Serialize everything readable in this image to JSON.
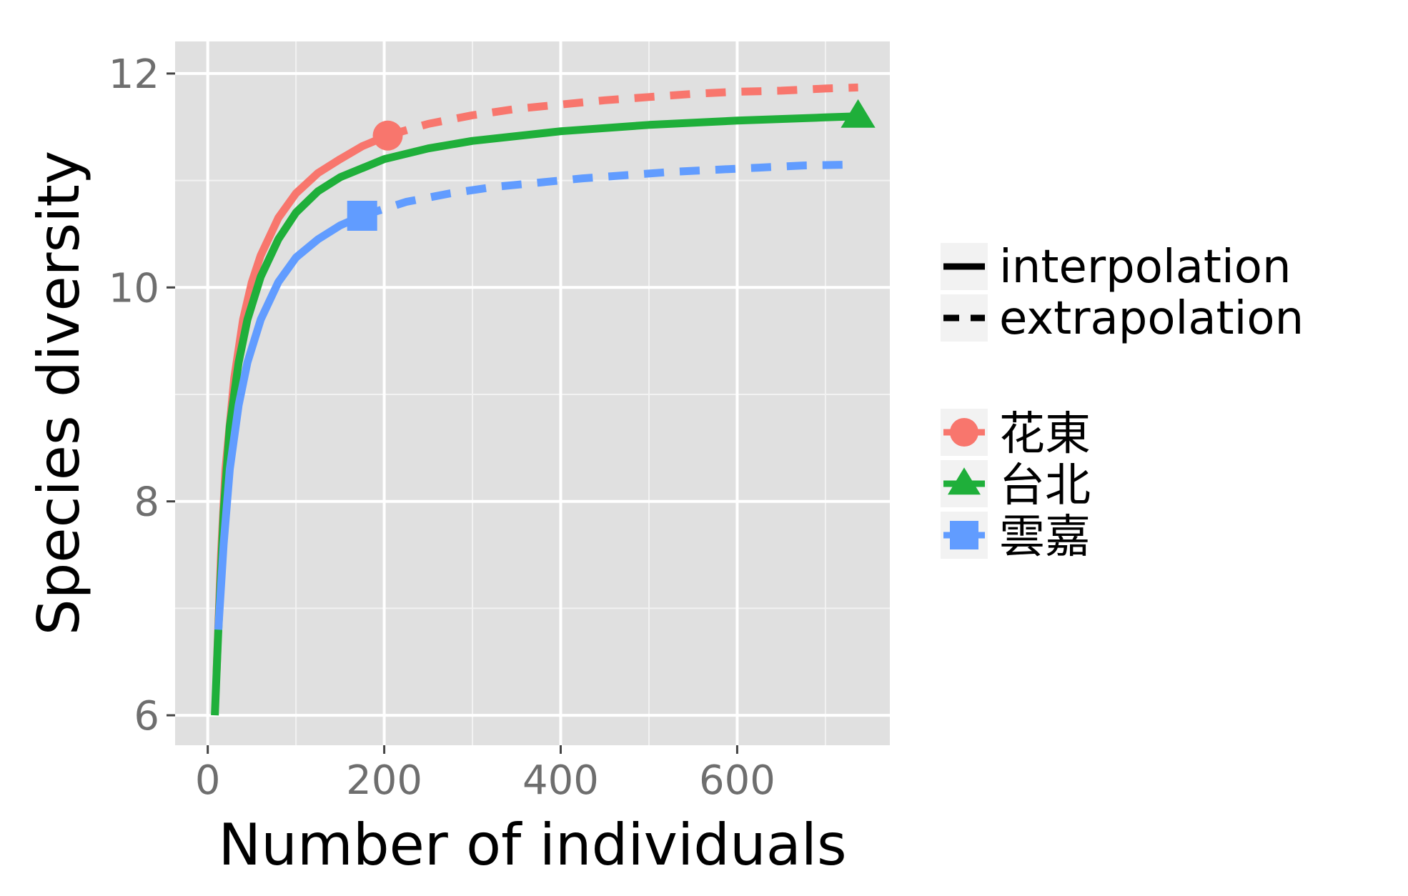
{
  "chart_data": {
    "type": "line",
    "title": "",
    "xlabel": "Number of individuals",
    "ylabel": "Species diversity",
    "xlim": [
      -37,
      773
    ],
    "ylim": [
      5.72,
      12.3
    ],
    "x_ticks": [
      0,
      200,
      400,
      600
    ],
    "x_minor_ticks": [
      100,
      300,
      500,
      700
    ],
    "y_ticks": [
      6,
      8,
      10,
      12
    ],
    "y_minor_ticks": [
      7,
      9,
      11
    ],
    "grid": true,
    "legend_position": "right",
    "linetype_legend": [
      {
        "label": "interpolation",
        "dash": "solid"
      },
      {
        "label": "extrapolation",
        "dash": "dashed"
      }
    ],
    "series": [
      {
        "name": "花東",
        "color": "#F8766D",
        "marker": "circle",
        "reference_point": {
          "x": 204,
          "y": 11.42
        },
        "interpolation": [
          [
            10,
            6.4
          ],
          [
            15,
            7.5
          ],
          [
            20,
            8.3
          ],
          [
            30,
            9.15
          ],
          [
            40,
            9.7
          ],
          [
            50,
            10.05
          ],
          [
            60,
            10.3
          ],
          [
            80,
            10.65
          ],
          [
            100,
            10.88
          ],
          [
            125,
            11.07
          ],
          [
            150,
            11.2
          ],
          [
            175,
            11.32
          ],
          [
            204,
            11.42
          ]
        ],
        "extrapolation": [
          [
            204,
            11.42
          ],
          [
            250,
            11.53
          ],
          [
            300,
            11.61
          ],
          [
            350,
            11.67
          ],
          [
            400,
            11.71
          ],
          [
            450,
            11.75
          ],
          [
            500,
            11.78
          ],
          [
            550,
            11.81
          ],
          [
            600,
            11.83
          ],
          [
            650,
            11.84
          ],
          [
            700,
            11.86
          ],
          [
            737,
            11.87
          ]
        ]
      },
      {
        "name": "台北",
        "color": "#1FAF3A",
        "marker": "triangle",
        "reference_point": {
          "x": 737,
          "y": 11.6
        },
        "interpolation": [
          [
            8,
            6.0
          ],
          [
            12,
            6.8
          ],
          [
            18,
            7.9
          ],
          [
            25,
            8.7
          ],
          [
            35,
            9.3
          ],
          [
            45,
            9.7
          ],
          [
            60,
            10.1
          ],
          [
            80,
            10.45
          ],
          [
            100,
            10.7
          ],
          [
            125,
            10.9
          ],
          [
            150,
            11.03
          ],
          [
            200,
            11.2
          ],
          [
            250,
            11.3
          ],
          [
            300,
            11.37
          ],
          [
            400,
            11.46
          ],
          [
            500,
            11.52
          ],
          [
            600,
            11.56
          ],
          [
            700,
            11.59
          ],
          [
            737,
            11.6
          ]
        ],
        "extrapolation": []
      },
      {
        "name": "雲嘉",
        "color": "#619CFF",
        "marker": "square",
        "reference_point": {
          "x": 175,
          "y": 10.67
        },
        "interpolation": [
          [
            12,
            6.8
          ],
          [
            18,
            7.6
          ],
          [
            25,
            8.3
          ],
          [
            35,
            8.9
          ],
          [
            45,
            9.3
          ],
          [
            60,
            9.7
          ],
          [
            80,
            10.05
          ],
          [
            100,
            10.28
          ],
          [
            125,
            10.45
          ],
          [
            150,
            10.58
          ],
          [
            175,
            10.67
          ]
        ],
        "extrapolation": [
          [
            175,
            10.67
          ],
          [
            225,
            10.8
          ],
          [
            275,
            10.88
          ],
          [
            325,
            10.94
          ],
          [
            375,
            10.98
          ],
          [
            425,
            11.02
          ],
          [
            475,
            11.05
          ],
          [
            525,
            11.08
          ],
          [
            575,
            11.1
          ],
          [
            625,
            11.12
          ],
          [
            675,
            11.14
          ],
          [
            737,
            11.15
          ]
        ]
      }
    ]
  }
}
